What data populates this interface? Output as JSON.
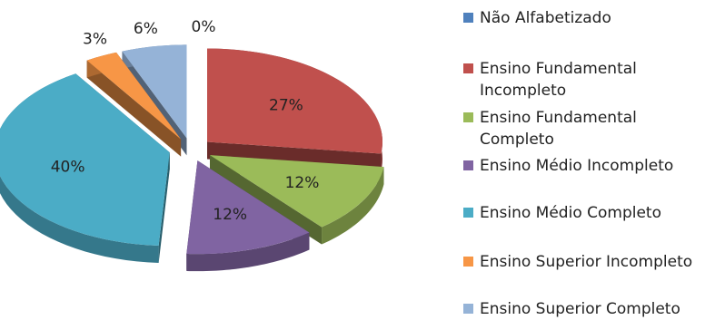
{
  "chart_data": {
    "type": "pie",
    "title": "",
    "three_d": true,
    "exploded": true,
    "legend_position": "right",
    "slices": [
      {
        "name": "Não Alfabetizado",
        "value": 0,
        "label": "0%",
        "color": "#4f81bd"
      },
      {
        "name": "Ensino Fundamental Incompleto",
        "value": 27,
        "label": "27%",
        "color": "#c0504d"
      },
      {
        "name": "Ensino Fundamental Completo",
        "value": 12,
        "label": "12%",
        "color": "#9bbb59"
      },
      {
        "name": "Ensino Médio Incompleto",
        "value": 12,
        "label": "12%",
        "color": "#8064a2"
      },
      {
        "name": "Ensino Médio Completo",
        "value": 40,
        "label": "40%",
        "color": "#4bacc6"
      },
      {
        "name": "Ensino Superior Incompleto",
        "value": 3,
        "label": "3%",
        "color": "#f79646"
      },
      {
        "name": "Ensino Superior Completo",
        "value": 6,
        "label": "6%",
        "color": "#95b3d7"
      }
    ]
  }
}
